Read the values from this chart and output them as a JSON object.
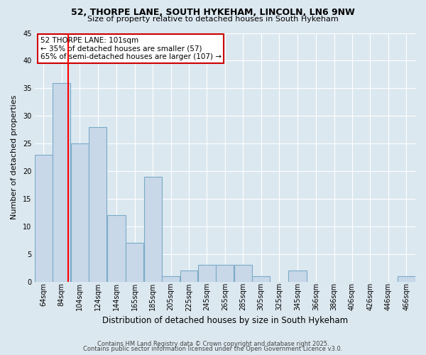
{
  "title1": "52, THORPE LANE, SOUTH HYKEHAM, LINCOLN, LN6 9NW",
  "title2": "Size of property relative to detached houses in South Hykeham",
  "xlabel": "Distribution of detached houses by size in South Hykeham",
  "ylabel": "Number of detached properties",
  "bins": [
    "64sqm",
    "84sqm",
    "104sqm",
    "124sqm",
    "144sqm",
    "165sqm",
    "185sqm",
    "205sqm",
    "225sqm",
    "245sqm",
    "265sqm",
    "285sqm",
    "305sqm",
    "325sqm",
    "345sqm",
    "366sqm",
    "386sqm",
    "406sqm",
    "426sqm",
    "446sqm",
    "466sqm"
  ],
  "values": [
    23,
    36,
    25,
    28,
    12,
    7,
    19,
    1,
    2,
    3,
    3,
    3,
    1,
    0,
    2,
    0,
    0,
    0,
    0,
    0,
    1
  ],
  "bar_color": "#c8d8e8",
  "bar_edge_color": "#7aaac8",
  "red_line_x": 101,
  "bin_starts": [
    64,
    84,
    104,
    124,
    144,
    165,
    185,
    205,
    225,
    245,
    265,
    285,
    305,
    325,
    345,
    366,
    386,
    406,
    426,
    446,
    466
  ],
  "annotation_line1": "52 THORPE LANE: 101sqm",
  "annotation_line2": "← 35% of detached houses are smaller (57)",
  "annotation_line3": "65% of semi-detached houses are larger (107) →",
  "annotation_box_color": "#ffffff",
  "annotation_border_color": "#cc0000",
  "footer1": "Contains HM Land Registry data © Crown copyright and database right 2025.",
  "footer2": "Contains public sector information licensed under the Open Government Licence v3.0.",
  "background_color": "#dce8f0",
  "ylim": [
    0,
    45
  ],
  "yticks": [
    0,
    5,
    10,
    15,
    20,
    25,
    30,
    35,
    40,
    45
  ],
  "grid_color": "#ffffff",
  "title1_fontsize": 9.0,
  "title2_fontsize": 8.0,
  "xlabel_fontsize": 8.5,
  "ylabel_fontsize": 8.0,
  "tick_fontsize": 7.0,
  "annotation_fontsize": 7.5,
  "footer_fontsize": 6.0
}
